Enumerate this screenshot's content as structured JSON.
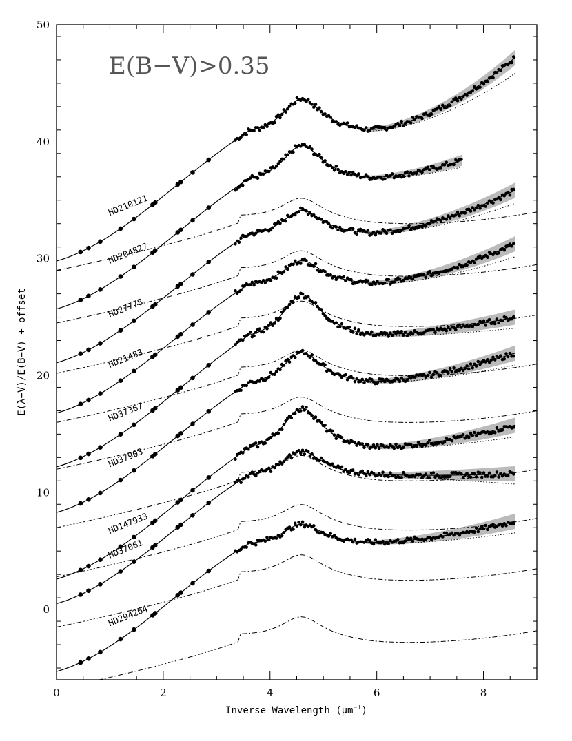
{
  "chart_data": {
    "type": "line",
    "title": "",
    "annotation": "E(B−V)>0.35",
    "xlabel": "Inverse Wavelength (μm",
    "xlabel_sup": "−1",
    "xlabel_close": ")",
    "ylabel": "E(λ−V)/E(B−V) + offset",
    "xlim": [
      0,
      9
    ],
    "ylim": [
      -6,
      50
    ],
    "x_ticks": [
      0,
      2,
      4,
      6,
      8
    ],
    "y_ticks": [
      0,
      10,
      20,
      30,
      40,
      50
    ],
    "x_tick_labels": [
      "0",
      "2",
      "4",
      "6",
      "8"
    ],
    "y_tick_labels": [
      "0",
      "10",
      "20",
      "30",
      "40",
      "50"
    ],
    "grid": false,
    "colors": {
      "data": "#000000",
      "band": "#bbbbbb",
      "annotation": "#555555"
    },
    "series": [
      {
        "name": "HD210121",
        "offset": 30,
        "bump_height": 3.0,
        "far_uv_curvature": 0.55,
        "far_uv_slope": 0.9,
        "ir_start": -0.2,
        "x_max": 8.6
      },
      {
        "name": "HD204827",
        "offset": 25.5,
        "bump_height": 3.1,
        "far_uv_curvature": 0.25,
        "far_uv_slope": 0.6,
        "ir_start": 0.2,
        "x_max": 7.6
      },
      {
        "name": "HD27778",
        "offset": 21.2,
        "bump_height": 2.2,
        "far_uv_curvature": 0.3,
        "far_uv_slope": 0.6,
        "ir_start": -0.1,
        "x_max": 8.6
      },
      {
        "name": "HD21483",
        "offset": 17,
        "bump_height": 2.2,
        "far_uv_curvature": 0.28,
        "far_uv_slope": 0.55,
        "ir_start": -0.2,
        "x_max": 8.6
      },
      {
        "name": "HD37367",
        "offset": 13,
        "bump_height": 3.8,
        "far_uv_curvature": 0.1,
        "far_uv_slope": 0.4,
        "ir_start": -0.8,
        "x_max": 8.6
      },
      {
        "name": "HD37903",
        "offset": 8,
        "bump_height": 2.8,
        "far_uv_curvature": 0.18,
        "far_uv_slope": 0.5,
        "ir_start": 0.3,
        "x_max": 8.6
      },
      {
        "name": "HD147933",
        "offset": 3.8,
        "bump_height": 3.7,
        "far_uv_curvature": 0.15,
        "far_uv_slope": 0.4,
        "ir_start": -1.2,
        "x_max": 8.6
      },
      {
        "name": "HD37061",
        "offset": -0.5,
        "bump_height": 2.2,
        "far_uv_curvature": 0.02,
        "far_uv_slope": 0.0,
        "ir_start": 1.0,
        "x_max": 8.6
      },
      {
        "name": "HD294264",
        "offset": -5.8,
        "bump_height": 1.8,
        "far_uv_curvature": 0.15,
        "far_uv_slope": 0.3,
        "ir_start": 0.5,
        "x_max": 8.6
      }
    ]
  }
}
